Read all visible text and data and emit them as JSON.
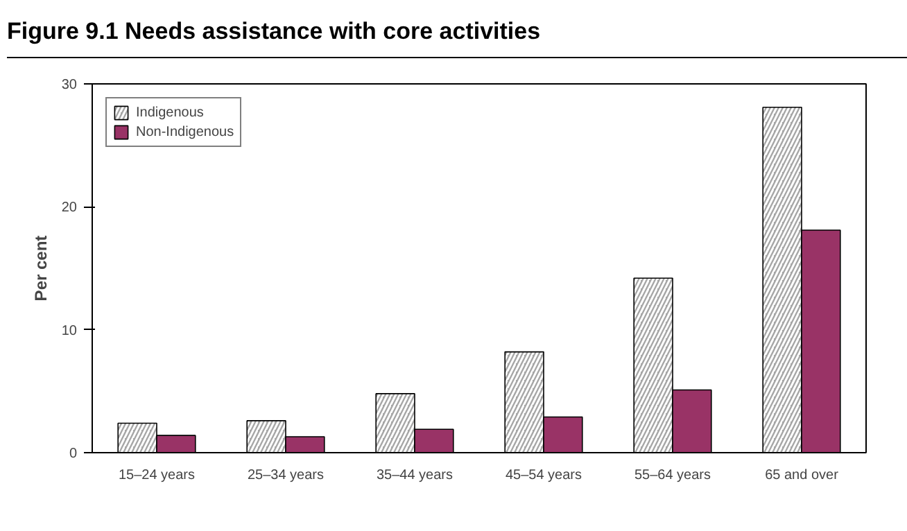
{
  "chart_data": {
    "type": "bar",
    "title": "Figure 9.1    Needs assistance with core activities",
    "ylabel": "Per cent",
    "categories": [
      "15–24 years",
      "25–34 years",
      "35–44 years",
      "45–54 years",
      "55–64 years",
      "65 and over"
    ],
    "series": [
      {
        "name": "Indigenous",
        "color": "#a6a6a6",
        "values": [
          2.4,
          2.6,
          4.8,
          8.2,
          14.2,
          28.1
        ]
      },
      {
        "name": "Non-Indigenous",
        "color": "#993366",
        "values": [
          1.4,
          1.3,
          1.9,
          2.9,
          5.1,
          18.1
        ]
      }
    ],
    "ylim": [
      0,
      30
    ],
    "yticks": [
      0,
      10,
      20,
      30
    ],
    "grid": false,
    "legend": "top left"
  }
}
